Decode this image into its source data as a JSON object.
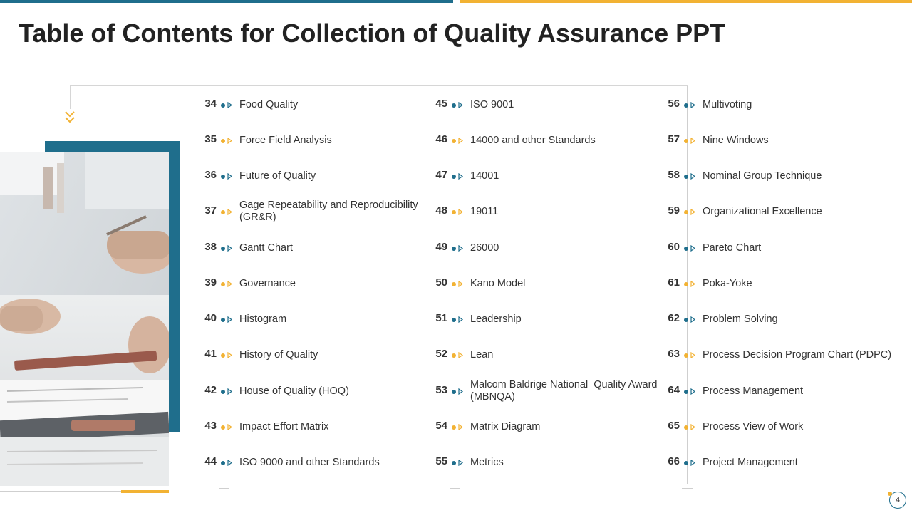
{
  "title": "Table of Contents for Collection of Quality Assurance PPT",
  "colors": {
    "blue": "#1f6e8c",
    "orange": "#f2b233"
  },
  "icons": {
    "marker": "arrow-right-outline-icon",
    "connector": "double-chevron-down-icon"
  },
  "columns": [
    {
      "items": [
        {
          "num": "34",
          "label": "Food Quality",
          "color": "blue"
        },
        {
          "num": "35",
          "label": "Force Field Analysis",
          "color": "orange"
        },
        {
          "num": "36",
          "label": "Future of Quality",
          "color": "blue"
        },
        {
          "num": "37",
          "label": "Gage Repeatability and Reproducibility (GR&R)",
          "color": "orange"
        },
        {
          "num": "38",
          "label": "Gantt Chart",
          "color": "blue"
        },
        {
          "num": "39",
          "label": "Governance",
          "color": "orange"
        },
        {
          "num": "40",
          "label": "Histogram",
          "color": "blue"
        },
        {
          "num": "41",
          "label": "History of Quality",
          "color": "orange"
        },
        {
          "num": "42",
          "label": "House of Quality (HOQ)",
          "color": "blue"
        },
        {
          "num": "43",
          "label": "Impact Effort Matrix",
          "color": "orange"
        },
        {
          "num": "44",
          "label": "ISO 9000 and other Standards",
          "color": "blue"
        }
      ]
    },
    {
      "items": [
        {
          "num": "45",
          "label": "ISO 9001",
          "color": "blue"
        },
        {
          "num": "46",
          "label": "14000 and other Standards",
          "color": "orange"
        },
        {
          "num": "47",
          "label": "14001",
          "color": "blue"
        },
        {
          "num": "48",
          "label": "19011",
          "color": "orange"
        },
        {
          "num": "49",
          "label": "26000",
          "color": "blue"
        },
        {
          "num": "50",
          "label": "Kano Model",
          "color": "orange"
        },
        {
          "num": "51",
          "label": "Leadership",
          "color": "blue"
        },
        {
          "num": "52",
          "label": "Lean",
          "color": "orange"
        },
        {
          "num": "53",
          "label": "Malcom Baldrige National  Quality Award (MBNQA)",
          "color": "blue"
        },
        {
          "num": "54",
          "label": "Matrix Diagram",
          "color": "orange"
        },
        {
          "num": "55",
          "label": "Metrics",
          "color": "blue"
        }
      ]
    },
    {
      "items": [
        {
          "num": "56",
          "label": "Multivoting",
          "color": "blue"
        },
        {
          "num": "57",
          "label": "Nine Windows",
          "color": "orange"
        },
        {
          "num": "58",
          "label": "Nominal Group Technique",
          "color": "blue"
        },
        {
          "num": "59",
          "label": "Organizational Excellence",
          "color": "orange"
        },
        {
          "num": "60",
          "label": "Pareto Chart",
          "color": "blue"
        },
        {
          "num": "61",
          "label": "Poka-Yoke",
          "color": "orange"
        },
        {
          "num": "62",
          "label": "Problem Solving",
          "color": "blue"
        },
        {
          "num": "63",
          "label": "Process Decision Program Chart (PDPC)",
          "color": "orange"
        },
        {
          "num": "64",
          "label": "Process Management",
          "color": "blue"
        },
        {
          "num": "65",
          "label": "Process View of Work",
          "color": "orange"
        },
        {
          "num": "66",
          "label": "Project Management",
          "color": "blue"
        }
      ]
    }
  ],
  "page_number": "4"
}
